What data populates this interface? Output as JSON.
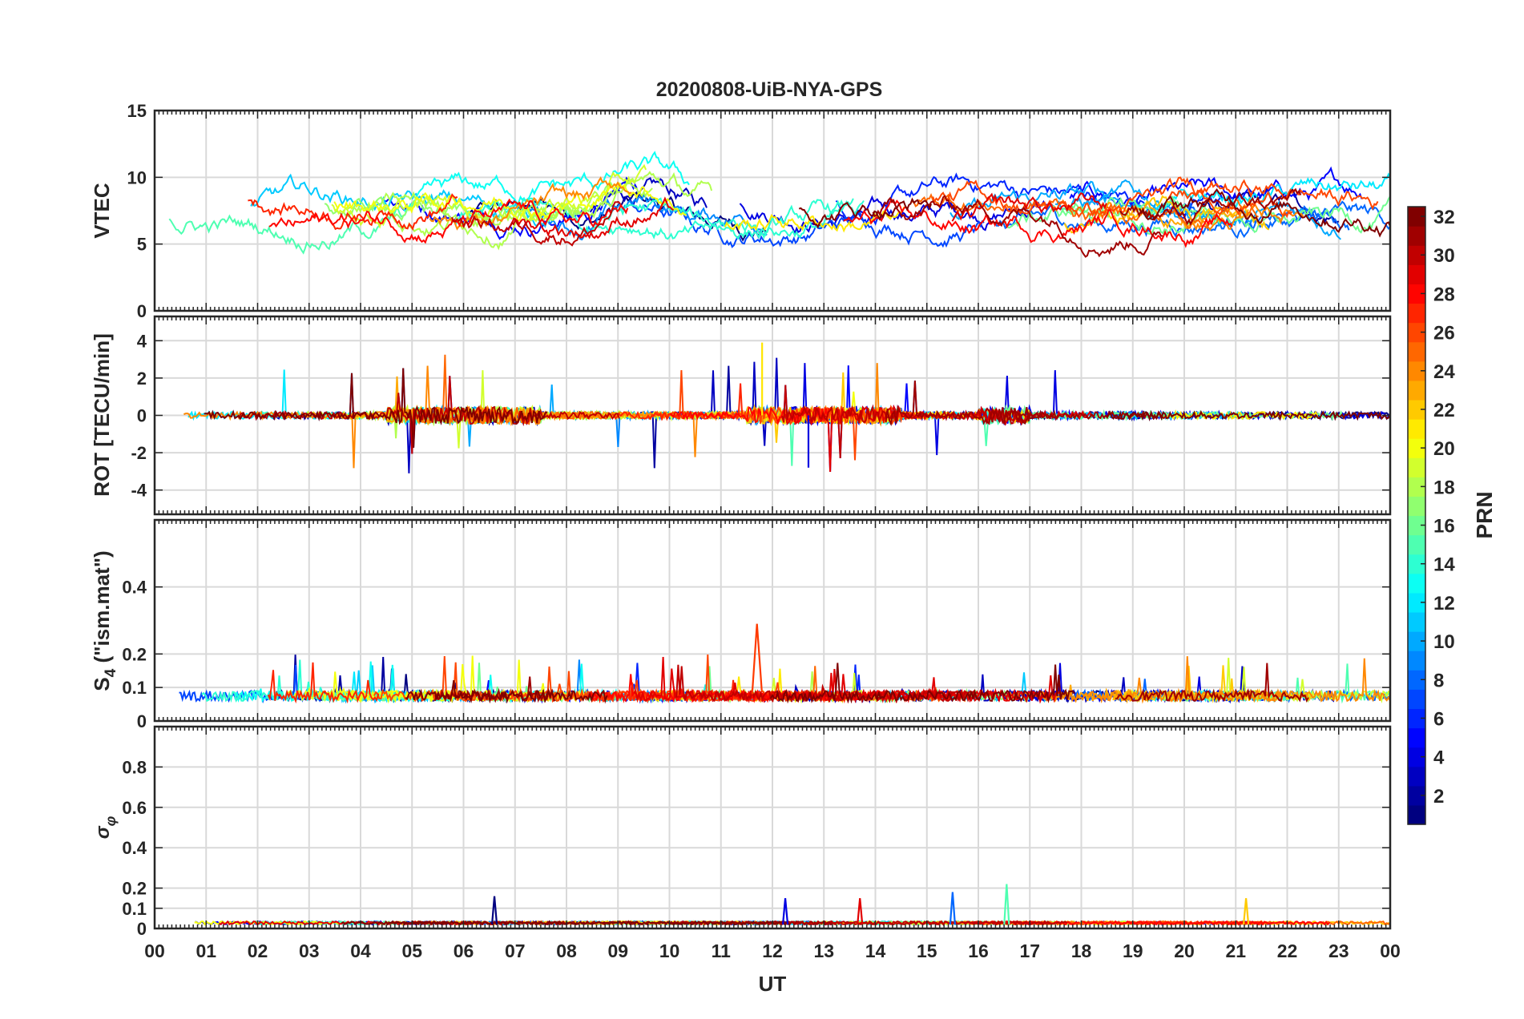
{
  "chart_data": {
    "type": "line",
    "title": "20200808-UiB-NYA-GPS",
    "xlabel": "UT",
    "x_tick_labels": [
      "00",
      "01",
      "02",
      "03",
      "04",
      "05",
      "06",
      "07",
      "08",
      "09",
      "10",
      "11",
      "12",
      "13",
      "14",
      "15",
      "16",
      "17",
      "18",
      "19",
      "20",
      "21",
      "22",
      "23",
      "00"
    ],
    "xlim": [
      0,
      24
    ],
    "panels": [
      {
        "id": "vtec",
        "ylabel": "VTEC",
        "ylim": [
          0,
          15
        ],
        "yticks": [
          0,
          5,
          10,
          15
        ],
        "grid": true,
        "series_summary": {
          "baseline": 7.5,
          "spread": 1.5,
          "peak_window_UT": [
            8.5,
            10.5
          ],
          "peak_value": 12
        }
      },
      {
        "id": "rot",
        "ylabel": "ROT [TECU/min]",
        "ylim": [
          -5.3,
          5.3
        ],
        "yticks": [
          -4,
          -2,
          0,
          2,
          4
        ],
        "grid": true,
        "series_summary": {
          "baseline": 0,
          "max_spike": 3.9,
          "min_spike": -2.8,
          "active_window_UT": [
            11.5,
            14.5
          ]
        }
      },
      {
        "id": "s4",
        "ylabel": "S_4 (\"ism.mat\")",
        "ylim": [
          0,
          0.6
        ],
        "yticks": [
          0,
          0.1,
          0.2,
          0.4
        ],
        "grid": true,
        "series_summary": {
          "baseline": 0.06,
          "max_peak": 0.29,
          "max_peak_UT": 11.7
        }
      },
      {
        "id": "sigma",
        "ylabel": "σ_φ",
        "ylabel_main": "σ",
        "ylabel_sub": "φ",
        "ylim": [
          0,
          1
        ],
        "yticks": [
          0,
          0.1,
          0.2,
          0.4,
          0.6,
          0.8
        ],
        "grid": true,
        "series_summary": {
          "baseline": 0.02,
          "spikes": [
            {
              "UT": 6.6,
              "value": 0.16
            },
            {
              "UT": 15.5,
              "value": 0.18
            },
            {
              "UT": 16.55,
              "value": 0.22
            },
            {
              "UT": 21.2,
              "value": 0.15
            },
            {
              "UT": 13.7,
              "value": 0.15
            },
            {
              "UT": 12.25,
              "value": 0.15
            }
          ]
        }
      }
    ],
    "colorbar": {
      "label": "PRN",
      "range": [
        1,
        32
      ],
      "tick_labels": [
        "2",
        "4",
        "6",
        "8",
        "10",
        "12",
        "14",
        "16",
        "18",
        "20",
        "22",
        "24",
        "26",
        "28",
        "30",
        "32"
      ],
      "colormap": "jet"
    },
    "series_note": "one line per GPS satellite PRN, colored by PRN"
  }
}
